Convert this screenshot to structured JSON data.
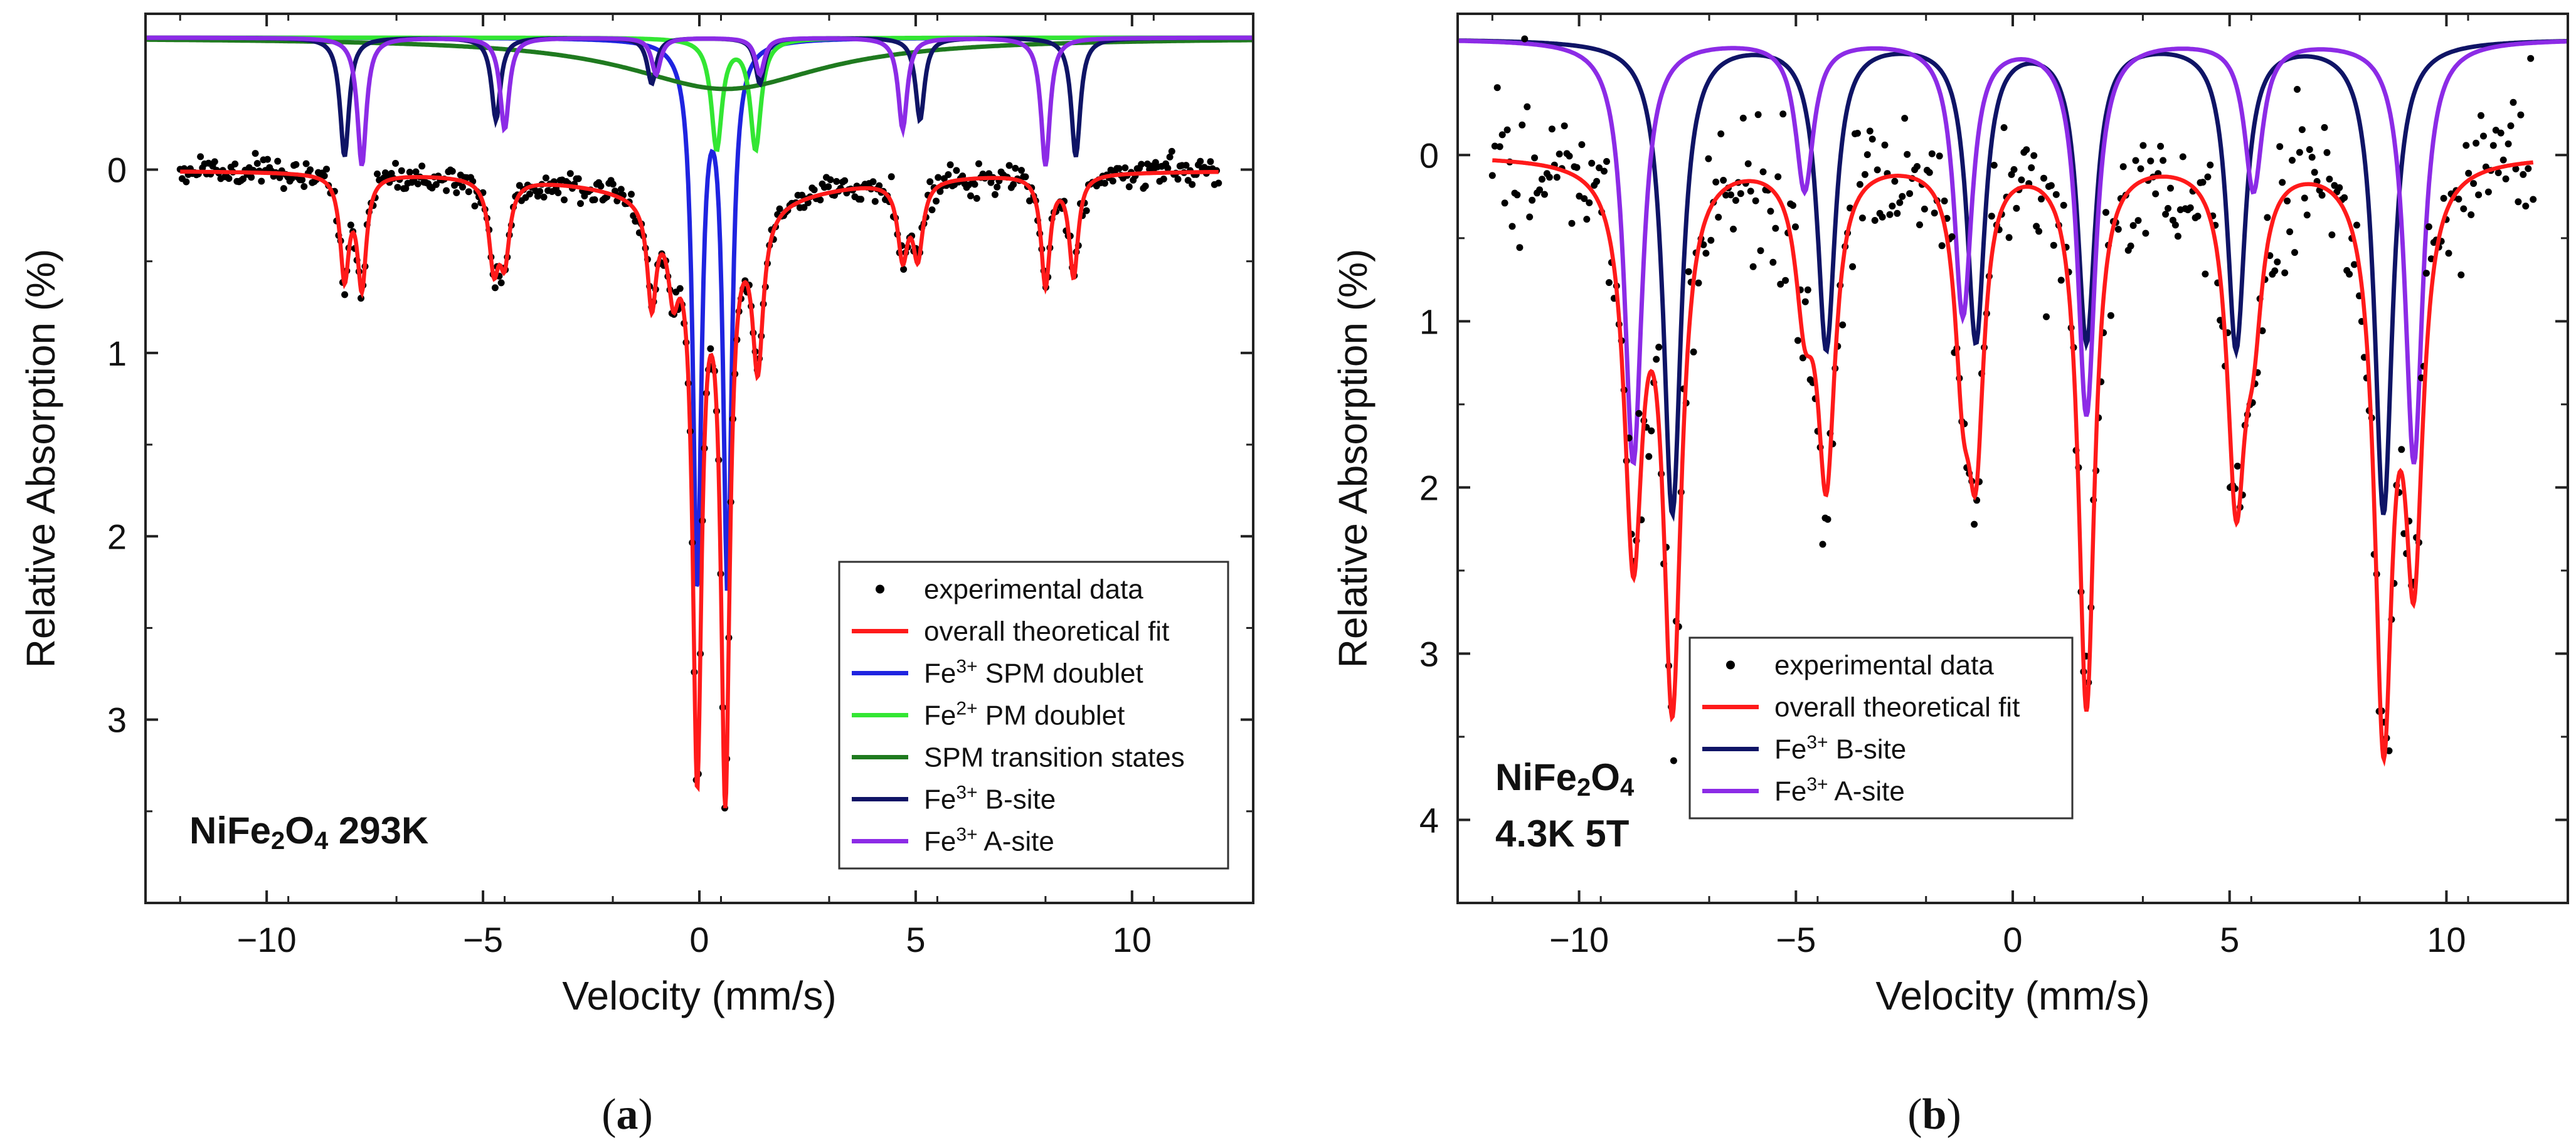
{
  "chart_data": [
    {
      "type": "scatter",
      "panel_label": "a",
      "xlabel": "Velocity (mm/s)",
      "ylabel": "Relative Absorption (%)",
      "xlim": [
        -12.8,
        12.8
      ],
      "ylim": [
        4.0,
        -0.85
      ],
      "y_inverted": true,
      "xticks": [
        -10,
        -5,
        0,
        5,
        10
      ],
      "xtick_labels": [
        "−10",
        "−5",
        "0",
        "5",
        "10"
      ],
      "yticks": [
        0,
        1,
        2,
        3
      ],
      "ytick_labels": [
        "0",
        "1",
        "2",
        "3"
      ],
      "annotation": {
        "main": "NiFe",
        "sub": "2",
        "rest": "O",
        "sub2": "4",
        "tail": " 293K"
      },
      "legend_position": "bottom-right",
      "legend": [
        {
          "kind": "points",
          "label": "experimental data",
          "color": "#000000"
        },
        {
          "kind": "line",
          "label": "overall theoretical fit",
          "color": "#ff1a1a"
        },
        {
          "kind": "line",
          "label_prefix": "Fe",
          "label_sup": "3+",
          "label_suffix": " SPM doublet",
          "color": "#1f24e0"
        },
        {
          "kind": "line",
          "label_prefix": "Fe",
          "label_sup": "2+",
          "label_suffix": " PM doublet",
          "color": "#33e633"
        },
        {
          "kind": "line",
          "label": "SPM transition states",
          "color": "#1f7a1f"
        },
        {
          "kind": "line",
          "label_prefix": "Fe",
          "label_sup": "3+",
          "label_suffix": " B-site",
          "color": "#0f1466"
        },
        {
          "kind": "line",
          "label_prefix": "Fe",
          "label_sup": "3+",
          "label_suffix": " A-site",
          "color": "#8c2be6"
        }
      ],
      "components_baseline": -0.72,
      "components": [
        {
          "name": "Fe3+ SPM doublet",
          "color": "#1f24e0",
          "width": 0.24,
          "lines": [
            {
              "x0": -0.05,
              "depth": 2.95
            },
            {
              "x0": 0.65,
              "depth": 2.95
            }
          ]
        },
        {
          "name": "Fe2+ PM doublet",
          "color": "#33e633",
          "width": 0.3,
          "lines": [
            {
              "x0": 0.4,
              "depth": 0.6
            },
            {
              "x0": 1.3,
              "depth": 0.6
            }
          ]
        },
        {
          "name": "SPM transition states",
          "color": "#1f7a1f",
          "width": 5.5,
          "lines": [
            {
              "x0": 0.6,
              "depth": 0.28
            }
          ]
        },
        {
          "name": "Fe3+ B-site",
          "color": "#0f1466",
          "width": 0.25,
          "lines": [
            {
              "x0": -8.2,
              "depth": 0.65
            },
            {
              "x0": -4.7,
              "depth": 0.45
            },
            {
              "x0": -1.1,
              "depth": 0.25
            },
            {
              "x0": 1.4,
              "depth": 0.25
            },
            {
              "x0": 5.1,
              "depth": 0.45
            },
            {
              "x0": 8.7,
              "depth": 0.65
            }
          ]
        },
        {
          "name": "Fe3+ A-site",
          "color": "#8c2be6",
          "width": 0.25,
          "lines": [
            {
              "x0": -7.8,
              "depth": 0.7
            },
            {
              "x0": -4.5,
              "depth": 0.5
            },
            {
              "x0": -1.0,
              "depth": 0.2
            },
            {
              "x0": 1.4,
              "depth": 0.2
            },
            {
              "x0": 4.7,
              "depth": 0.5
            },
            {
              "x0": 8.0,
              "depth": 0.7
            }
          ]
        }
      ],
      "fit": {
        "name": "overall theoretical fit",
        "color": "#ff1a1a",
        "baseline": 0.0,
        "lines": [
          {
            "x0": -8.2,
            "depth": 0.55,
            "width": 0.25
          },
          {
            "x0": -7.8,
            "depth": 0.6,
            "width": 0.25
          },
          {
            "x0": -4.75,
            "depth": 0.45,
            "width": 0.28
          },
          {
            "x0": -4.5,
            "depth": 0.4,
            "width": 0.28
          },
          {
            "x0": -1.1,
            "depth": 0.55,
            "width": 0.25
          },
          {
            "x0": -0.6,
            "depth": 0.4,
            "width": 0.3
          },
          {
            "x0": -0.05,
            "depth": 3.05,
            "width": 0.25
          },
          {
            "x0": 0.6,
            "depth": 3.15,
            "width": 0.25
          },
          {
            "x0": 1.35,
            "depth": 0.85,
            "width": 0.3
          },
          {
            "x0": 4.7,
            "depth": 0.4,
            "width": 0.28
          },
          {
            "x0": 5.05,
            "depth": 0.4,
            "width": 0.28
          },
          {
            "x0": 8.0,
            "depth": 0.6,
            "width": 0.25
          },
          {
            "x0": 8.65,
            "depth": 0.55,
            "width": 0.25
          },
          {
            "x0": 0.5,
            "depth": 0.18,
            "width": 5.5
          }
        ],
        "x_range": [
          -12,
          12
        ]
      },
      "experimental": {
        "name": "experimental data",
        "color": "#000000",
        "x_range": [
          -12,
          12
        ],
        "n_points": 512,
        "noise_pct": 0.04
      }
    },
    {
      "type": "scatter",
      "panel_label": "b",
      "xlabel": "Velocity (mm/s)",
      "ylabel": "Relative Absorption (%)",
      "xlim": [
        -12.8,
        12.8
      ],
      "ylim": [
        4.5,
        -0.85
      ],
      "y_inverted": true,
      "xticks": [
        -10,
        -5,
        0,
        5,
        10
      ],
      "xtick_labels": [
        "−10",
        "−5",
        "0",
        "5",
        "10"
      ],
      "yticks": [
        0,
        1,
        2,
        3,
        4
      ],
      "ytick_labels": [
        "0",
        "1",
        "2",
        "3",
        "4"
      ],
      "annotation": {
        "main": "NiFe",
        "sub": "2",
        "rest": "O",
        "sub2": "4",
        "line2": "4.3K 5T"
      },
      "legend_position": "bottom-left",
      "legend": [
        {
          "kind": "points",
          "label": "experimental data",
          "color": "#000000"
        },
        {
          "kind": "line",
          "label": "overall theoretical fit",
          "color": "#ff1a1a"
        },
        {
          "kind": "line",
          "label_prefix": "Fe",
          "label_sup": "3+",
          "label_suffix": " B-site",
          "color": "#0f1466"
        },
        {
          "kind": "line",
          "label_prefix": "Fe",
          "label_sup": "3+",
          "label_suffix": " A-site",
          "color": "#8c2be6"
        }
      ],
      "components_baseline": -0.7,
      "components": [
        {
          "name": "Fe3+ B-site",
          "color": "#0f1466",
          "width": 0.5,
          "lines": [
            {
              "x0": -7.85,
              "depth": 2.85
            },
            {
              "x0": -4.3,
              "depth": 1.85
            },
            {
              "x0": -0.85,
              "depth": 1.8
            },
            {
              "x0": 1.7,
              "depth": 1.8
            },
            {
              "x0": 5.15,
              "depth": 1.85
            },
            {
              "x0": 8.55,
              "depth": 2.85
            }
          ]
        },
        {
          "name": "Fe3+ A-site",
          "color": "#8c2be6",
          "width": 0.5,
          "lines": [
            {
              "x0": -8.75,
              "depth": 2.55
            },
            {
              "x0": -4.8,
              "depth": 0.9
            },
            {
              "x0": -1.15,
              "depth": 1.65
            },
            {
              "x0": 1.7,
              "depth": 2.25
            },
            {
              "x0": 5.55,
              "depth": 0.9
            },
            {
              "x0": 9.25,
              "depth": 2.55
            }
          ]
        }
      ],
      "fit": {
        "name": "overall theoretical fit",
        "color": "#ff1a1a",
        "baseline": 0.0,
        "lines": [
          {
            "x0": -8.75,
            "depth": 2.3,
            "width": 0.5
          },
          {
            "x0": -7.85,
            "depth": 3.2,
            "width": 0.5
          },
          {
            "x0": -4.8,
            "depth": 0.75,
            "width": 0.5
          },
          {
            "x0": -4.3,
            "depth": 1.85,
            "width": 0.5
          },
          {
            "x0": -1.15,
            "depth": 1.05,
            "width": 0.45
          },
          {
            "x0": -0.85,
            "depth": 1.6,
            "width": 0.45
          },
          {
            "x0": 1.7,
            "depth": 3.3,
            "width": 0.45
          },
          {
            "x0": 5.15,
            "depth": 1.95,
            "width": 0.5
          },
          {
            "x0": 5.55,
            "depth": 0.75,
            "width": 0.5
          },
          {
            "x0": 8.55,
            "depth": 3.35,
            "width": 0.5
          },
          {
            "x0": 9.25,
            "depth": 2.3,
            "width": 0.5
          }
        ],
        "x_range": [
          -12,
          12
        ]
      },
      "experimental": {
        "name": "experimental data",
        "color": "#000000",
        "x_range": [
          -12,
          12
        ],
        "n_points": 420,
        "noise_pct": 0.22
      }
    }
  ]
}
